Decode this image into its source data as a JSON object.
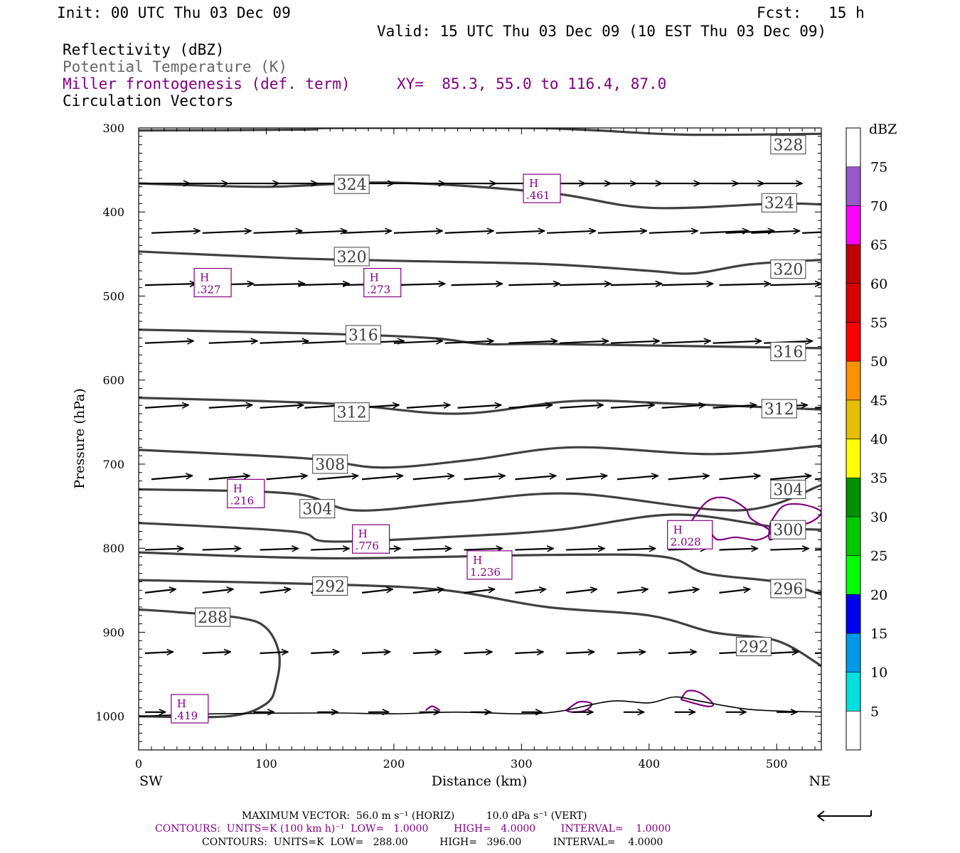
{
  "header": {
    "init": "Init: 00 UTC Thu 03 Dec 09",
    "fcst": "Fcst:   15 h",
    "valid": "Valid: 15 UTC Thu 03 Dec 09 (10 EST Thu 03 Dec 09)",
    "field1": "Reflectivity (dBZ)",
    "field2": "Potential Temperature (K)",
    "field3": "Miller frontogenesis (def. term)",
    "xy": "XY=  85.3, 55.0 to 116.4, 87.0",
    "field4": "Circulation Vectors"
  },
  "colors": {
    "theta": "#404040",
    "fronto": "#800080",
    "potential_label": "#666666"
  },
  "chart_data": {
    "type": "cross-section",
    "xlabel": "Distance (km)",
    "ylabel": "Pressure (hPa)",
    "xlim": [
      0,
      535
    ],
    "ylim": [
      1040,
      300
    ],
    "x_ticks": [
      "0",
      "100",
      "200",
      "300",
      "400",
      "500"
    ],
    "y_ticks": [
      "300",
      "400",
      "500",
      "600",
      "700",
      "800",
      "900",
      "1000"
    ],
    "left_end": "SW",
    "right_end": "NE",
    "colorbar": {
      "unit": "dBZ",
      "levels": [
        "5",
        "10",
        "15",
        "20",
        "25",
        "30",
        "35",
        "40",
        "45",
        "50",
        "55",
        "60",
        "65",
        "70",
        "75"
      ],
      "colors": [
        "#ffffff",
        "#00e0e0",
        "#0098e8",
        "#0000f0",
        "#00ff00",
        "#00c800",
        "#009000",
        "#ffff00",
        "#e6be00",
        "#ff9000",
        "#ff0000",
        "#d60000",
        "#c00000",
        "#ff00ff",
        "#9858c8",
        "#ffffff"
      ]
    },
    "theta_contours": [
      {
        "label": "328",
        "points": [
          [
            0,
            303
          ],
          [
            130,
            302
          ],
          [
            150,
            300
          ],
          [
            300,
            300
          ],
          [
            330,
            301
          ],
          [
            360,
            303
          ],
          [
            430,
            308
          ],
          [
            535,
            307
          ]
        ]
      },
      {
        "label": "324",
        "points": [
          [
            0,
            366
          ],
          [
            100,
            370
          ],
          [
            200,
            365
          ],
          [
            320,
            377
          ],
          [
            400,
            395
          ],
          [
            500,
            390
          ],
          [
            535,
            391
          ]
        ]
      },
      {
        "label": "320",
        "points": [
          [
            0,
            447
          ],
          [
            120,
            455
          ],
          [
            200,
            458
          ],
          [
            320,
            462
          ],
          [
            400,
            470
          ],
          [
            435,
            473
          ],
          [
            480,
            462
          ],
          [
            535,
            457
          ]
        ]
      },
      {
        "label": "316",
        "points": [
          [
            0,
            540
          ],
          [
            150,
            545
          ],
          [
            230,
            550
          ],
          [
            270,
            557
          ],
          [
            320,
            557
          ],
          [
            450,
            560
          ],
          [
            535,
            562
          ]
        ]
      },
      {
        "label": "312",
        "points": [
          [
            0,
            621
          ],
          [
            150,
            628
          ],
          [
            250,
            640
          ],
          [
            340,
            625
          ],
          [
            420,
            628
          ],
          [
            535,
            635
          ]
        ]
      },
      {
        "label": "308",
        "points": [
          [
            0,
            683
          ],
          [
            130,
            693
          ],
          [
            190,
            704
          ],
          [
            260,
            695
          ],
          [
            340,
            680
          ],
          [
            450,
            688
          ],
          [
            535,
            678
          ]
        ]
      },
      {
        "label": "304",
        "points": [
          [
            0,
            730
          ],
          [
            120,
            735
          ],
          [
            170,
            755
          ],
          [
            250,
            745
          ],
          [
            340,
            735
          ],
          [
            470,
            755
          ],
          [
            535,
            725
          ]
        ]
      },
      {
        "label": "300",
        "points": [
          [
            0,
            770
          ],
          [
            120,
            780
          ],
          [
            150,
            792
          ],
          [
            250,
            786
          ],
          [
            330,
            778
          ],
          [
            420,
            760
          ],
          [
            500,
            775
          ],
          [
            535,
            778
          ]
        ]
      },
      {
        "label": "296",
        "points": [
          [
            0,
            805
          ],
          [
            150,
            812
          ],
          [
            320,
            808
          ],
          [
            410,
            810
          ],
          [
            445,
            830
          ],
          [
            500,
            840
          ],
          [
            535,
            855
          ]
        ]
      },
      {
        "label": "292",
        "points": [
          [
            0,
            838
          ],
          [
            150,
            843
          ],
          [
            240,
            850
          ],
          [
            320,
            870
          ],
          [
            400,
            880
          ],
          [
            450,
            900
          ],
          [
            500,
            910
          ],
          [
            535,
            940
          ]
        ]
      },
      {
        "label": "288",
        "points": [
          [
            0,
            873
          ],
          [
            30,
            876
          ],
          [
            80,
            883
          ],
          [
            100,
            895
          ],
          [
            110,
            925
          ],
          [
            108,
            960
          ],
          [
            100,
            985
          ],
          [
            70,
            1000
          ],
          [
            0,
            1000
          ]
        ]
      }
    ],
    "theta_labels": [
      {
        "text": "328",
        "x": 509,
        "p": 320
      },
      {
        "text": "324",
        "x": 167,
        "p": 367
      },
      {
        "text": "324",
        "x": 502,
        "p": 389
      },
      {
        "text": "320",
        "x": 167,
        "p": 453
      },
      {
        "text": "320",
        "x": 509,
        "p": 468
      },
      {
        "text": "316",
        "x": 176,
        "p": 546
      },
      {
        "text": "316",
        "x": 509,
        "p": 566
      },
      {
        "text": "312",
        "x": 167,
        "p": 638
      },
      {
        "text": "312",
        "x": 502,
        "p": 634
      },
      {
        "text": "308",
        "x": 150,
        "p": 700
      },
      {
        "text": "304",
        "x": 140,
        "p": 753
      },
      {
        "text": "304",
        "x": 509,
        "p": 730
      },
      {
        "text": "300",
        "x": 509,
        "p": 778
      },
      {
        "text": "296",
        "x": 509,
        "p": 848
      },
      {
        "text": "292",
        "x": 150,
        "p": 845
      },
      {
        "text": "292",
        "x": 482,
        "p": 917
      },
      {
        "text": "288",
        "x": 58,
        "p": 882
      }
    ],
    "fronto_highs": [
      {
        "tag": "H",
        "value": ".461",
        "x": 316,
        "p": 372
      },
      {
        "tag": "H",
        "value": ".327",
        "x": 58,
        "p": 484
      },
      {
        "tag": "H",
        "value": ".273",
        "x": 191,
        "p": 484
      },
      {
        "tag": "H",
        "value": ".216",
        "x": 84,
        "p": 735
      },
      {
        "tag": "H",
        "value": ".776",
        "x": 182,
        "p": 789
      },
      {
        "tag": "H",
        "value": "1.236",
        "x": 275,
        "p": 820
      },
      {
        "tag": "H",
        "value": "2.028",
        "x": 432,
        "p": 784
      },
      {
        "tag": "H",
        "value": ".419",
        "x": 40,
        "p": 991
      }
    ],
    "fronto_contours": [
      [
        [
          430,
          775
        ],
        [
          445,
          745
        ],
        [
          460,
          740
        ],
        [
          475,
          752
        ],
        [
          480,
          765
        ],
        [
          495,
          780
        ],
        [
          485,
          790
        ],
        [
          468,
          787
        ],
        [
          455,
          790
        ],
        [
          450,
          785
        ],
        [
          445,
          770
        ],
        [
          430,
          775
        ]
      ],
      [
        [
          495,
          770
        ],
        [
          505,
          750
        ],
        [
          520,
          748
        ],
        [
          535,
          757
        ],
        [
          525,
          770
        ],
        [
          510,
          772
        ],
        [
          495,
          790
        ],
        [
          495,
          770
        ]
      ],
      [
        [
          335,
          993
        ],
        [
          345,
          983
        ],
        [
          355,
          985
        ],
        [
          350,
          993
        ],
        [
          340,
          995
        ],
        [
          335,
          993
        ]
      ],
      [
        [
          425,
          980
        ],
        [
          430,
          970
        ],
        [
          440,
          972
        ],
        [
          450,
          985
        ],
        [
          445,
          988
        ],
        [
          425,
          980
        ]
      ],
      [
        [
          225,
          993
        ],
        [
          230,
          988
        ],
        [
          236,
          993
        ]
      ]
    ],
    "vectors": [
      {
        "p": 366,
        "x": [
          0,
          30,
          70,
          100,
          120,
          160,
          200,
          240,
          270,
          310,
          330,
          350,
          370,
          400,
          430,
          450,
          480,
          535
        ],
        "dx": 20,
        "dp": 0
      },
      {
        "p": 425,
        "x": [
          10,
          50,
          90,
          125,
          160,
          200,
          240,
          280,
          320,
          360,
          400,
          440,
          460,
          480,
          520
        ],
        "dx": 19,
        "dp": -3
      },
      {
        "p": 487,
        "x": [
          5,
          50,
          90,
          125,
          160,
          200,
          245,
          290,
          330,
          370,
          410,
          455,
          495,
          535
        ],
        "dx": 20,
        "dp": -2
      },
      {
        "p": 556,
        "x": [
          5,
          55,
          95,
          130,
          170,
          200,
          240,
          290,
          330,
          370,
          410,
          450,
          490,
          535
        ],
        "dx": 19,
        "dp": -3
      },
      {
        "p": 633,
        "x": [
          5,
          55,
          95,
          130,
          170,
          210,
          250,
          290,
          330,
          370,
          410,
          450,
          490,
          530
        ],
        "dx": 17,
        "dp": -4
      },
      {
        "p": 718,
        "x": [
          10,
          55,
          100,
          140,
          175,
          215,
          255,
          295,
          335,
          375,
          415,
          455,
          495,
          530
        ],
        "dx": 16,
        "dp": -5
      },
      {
        "p": 802,
        "x": [
          5,
          50,
          95,
          135,
          175,
          215,
          255,
          295,
          335,
          375,
          415,
          455,
          495,
          530
        ],
        "dx": 15,
        "dp": -2
      },
      {
        "p": 853,
        "x": [
          5,
          50,
          95,
          135,
          175,
          215,
          255,
          295,
          335,
          375,
          415,
          455,
          495,
          530
        ],
        "dx": 12,
        "dp": -5
      },
      {
        "p": 925,
        "x": [
          5,
          50,
          95,
          135,
          175,
          215,
          255,
          295,
          335,
          375,
          415,
          455,
          495,
          530
        ],
        "dx": 11,
        "dp": -2
      },
      {
        "p": 995,
        "x": [
          5,
          90,
          140,
          180,
          220,
          260,
          300,
          340,
          380,
          420,
          460,
          500
        ],
        "dx": 8,
        "dp": 0
      }
    ],
    "terrain": [
      [
        0,
        1000
      ],
      [
        60,
        997
      ],
      [
        150,
        996
      ],
      [
        200,
        997
      ],
      [
        250,
        995
      ],
      [
        300,
        997
      ],
      [
        330,
        994
      ],
      [
        370,
        982
      ],
      [
        400,
        984
      ],
      [
        420,
        977
      ],
      [
        440,
        982
      ],
      [
        480,
        992
      ],
      [
        535,
        995
      ]
    ]
  },
  "footer": {
    "line1": "MAXIMUM VECTOR:  56.0 m s⁻¹ (HORIZ)          10.0 dPa s⁻¹ (VERT)",
    "line2": "CONTOURS:  UNITS=K (100 km h)⁻¹  LOW=   1.0000        HIGH=   4.0000        INTERVAL=    1.0000",
    "line3": "CONTOURS:  UNITS=K  LOW=   288.00          HIGH=   396.00          INTERVAL=    4.0000"
  }
}
